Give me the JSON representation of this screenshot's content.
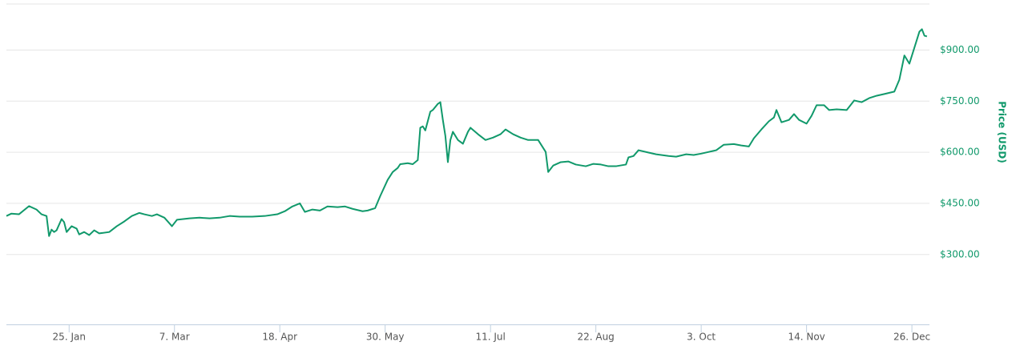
{
  "chart_data": {
    "type": "line",
    "y_axis_label": "Price (USD)",
    "x": [
      0,
      2,
      5,
      9,
      12,
      14,
      16,
      17,
      18,
      19,
      20,
      22,
      23,
      24,
      26,
      28,
      29,
      31,
      33,
      35,
      37,
      41,
      44,
      47,
      50,
      53,
      55,
      58,
      60,
      63,
      66,
      68,
      73,
      77,
      81,
      85,
      89,
      93,
      98,
      103,
      108,
      111,
      114,
      117,
      119,
      122,
      125,
      128,
      132,
      135,
      138,
      142,
      144,
      147,
      149,
      152,
      154,
      156,
      157,
      160,
      162,
      164,
      165,
      166,
      167,
      169,
      170,
      172,
      173,
      174,
      175,
      176,
      177,
      178,
      180,
      182,
      184,
      185,
      188,
      191,
      194,
      197,
      199,
      202,
      205,
      208,
      212,
      215,
      216,
      218,
      221,
      224,
      227,
      231,
      234,
      237,
      240,
      243,
      247,
      248,
      250,
      252,
      256,
      259,
      264,
      267,
      271,
      274,
      277,
      280,
      283,
      286,
      290,
      293,
      296,
      298,
      301,
      304,
      306,
      307,
      309,
      312,
      314,
      316,
      319,
      321,
      323,
      326,
      328,
      331,
      335,
      338,
      341,
      344,
      347,
      350,
      354,
      356,
      358,
      360,
      362,
      364,
      365,
      366,
      367
    ],
    "series": [
      {
        "name": "Price",
        "color": "#11996b",
        "values": [
          413,
          420,
          418,
          442,
          432,
          418,
          413,
          354,
          373,
          366,
          371,
          404,
          395,
          366,
          383,
          376,
          359,
          366,
          357,
          371,
          362,
          366,
          383,
          397,
          413,
          422,
          418,
          413,
          418,
          408,
          383,
          402,
          406,
          408,
          406,
          408,
          413,
          411,
          411,
          413,
          418,
          427,
          441,
          450,
          425,
          432,
          429,
          441,
          439,
          441,
          434,
          427,
          429,
          436,
          471,
          519,
          542,
          554,
          565,
          568,
          565,
          577,
          672,
          676,
          664,
          719,
          724,
          742,
          747,
          695,
          648,
          571,
          636,
          660,
          636,
          625,
          660,
          672,
          653,
          636,
          643,
          653,
          667,
          653,
          643,
          636,
          636,
          601,
          542,
          561,
          571,
          573,
          564,
          559,
          566,
          564,
          559,
          559,
          564,
          585,
          589,
          606,
          599,
          594,
          589,
          587,
          594,
          592,
          596,
          601,
          606,
          622,
          624,
          620,
          617,
          641,
          667,
          691,
          702,
          724,
          688,
          695,
          712,
          695,
          684,
          707,
          738,
          738,
          724,
          726,
          724,
          752,
          747,
          759,
          766,
          771,
          778,
          813,
          884,
          860,
          907,
          954,
          961,
          942,
          940
        ]
      }
    ],
    "xlim": [
      0,
      368
    ],
    "xticks": [
      {
        "value": 25,
        "label": "25. Jan"
      },
      {
        "value": 67,
        "label": "7. Mar"
      },
      {
        "value": 109,
        "label": "18. Apr"
      },
      {
        "value": 151,
        "label": "30. May"
      },
      {
        "value": 193,
        "label": "11. Jul"
      },
      {
        "value": 235,
        "label": "22. Aug"
      },
      {
        "value": 277,
        "label": "3. Oct"
      },
      {
        "value": 319,
        "label": "14. Nov"
      },
      {
        "value": 361,
        "label": "26. Dec"
      }
    ],
    "ylim": [
      95,
      1035
    ],
    "yticks": [
      {
        "value": 300,
        "label": "$300.00"
      },
      {
        "value": 450,
        "label": "$450.00"
      },
      {
        "value": 600,
        "label": "$600.00"
      },
      {
        "value": 750,
        "label": "$750.00"
      },
      {
        "value": 900,
        "label": "$900.00"
      }
    ],
    "grid": true
  }
}
